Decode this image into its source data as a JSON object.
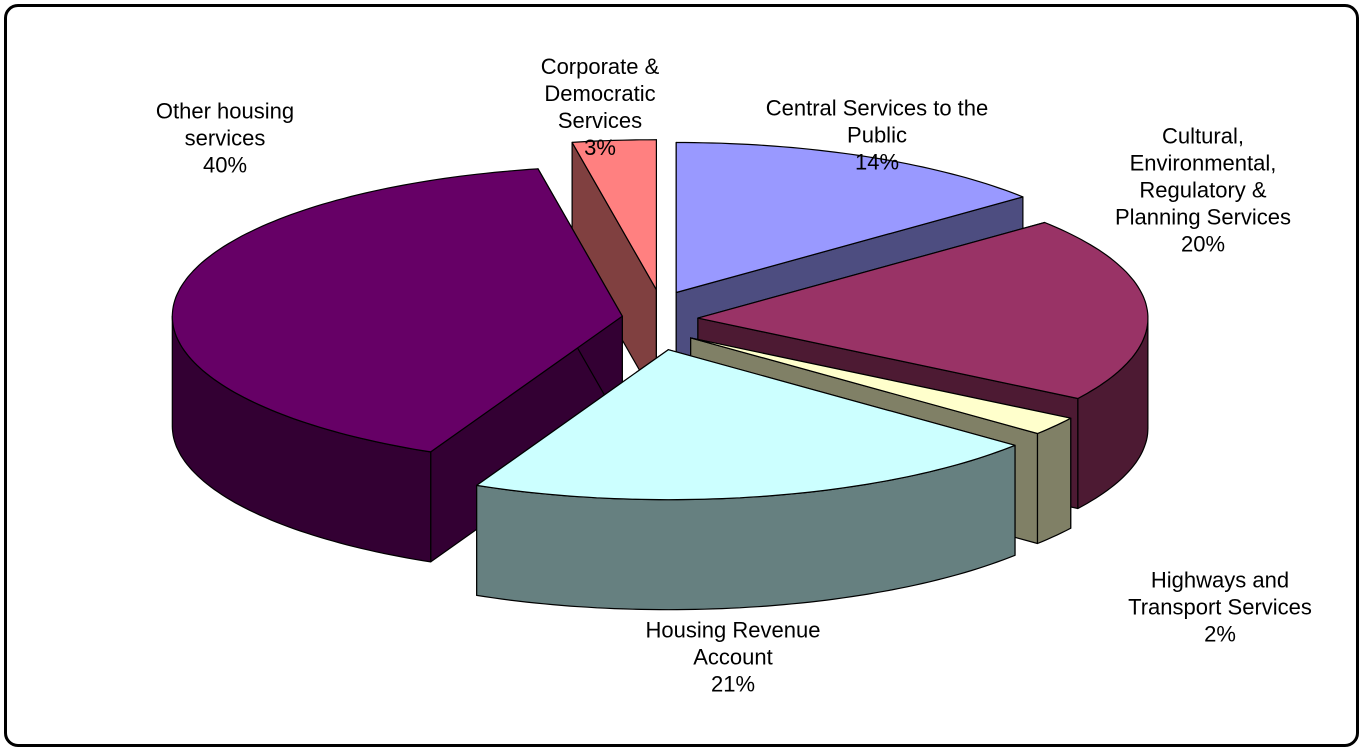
{
  "chart_data": {
    "type": "pie",
    "categories": [
      "Central Services to the Public",
      "Cultural, Environmental, Regulatory & Planning Services",
      "Highways and Transport Services",
      "Housing Revenue Account",
      "Other housing services",
      "Corporate & Democratic Services"
    ],
    "values": [
      14,
      20,
      2,
      21,
      40,
      3
    ],
    "value_labels": [
      "14%",
      "20%",
      "2%",
      "21%",
      "40%",
      "3%"
    ],
    "colors": [
      "#9999ff",
      "#993366",
      "#ffffcc",
      "#ccffff",
      "#660066",
      "#ff8080"
    ]
  }
}
